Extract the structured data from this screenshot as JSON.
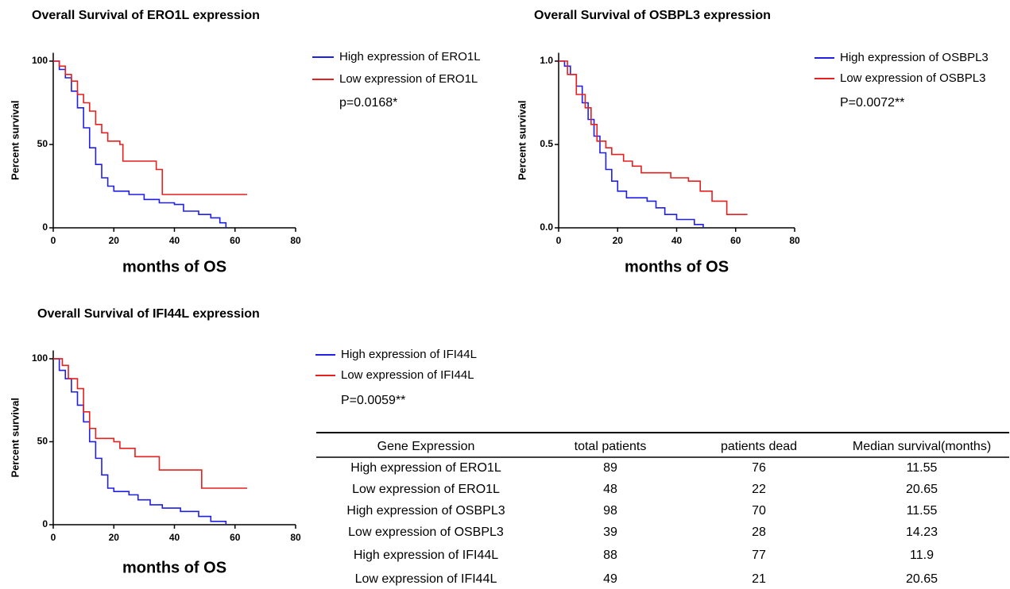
{
  "chart_data": [
    {
      "type": "line",
      "title": "Overall Survival of ERO1L expression",
      "y_label": "Percent survival",
      "x_label": "months of OS",
      "annotation": "p=0.0168*",
      "xlim": [
        0,
        80
      ],
      "xticks": [
        0,
        20,
        40,
        60,
        80
      ],
      "ylim": [
        0,
        105
      ],
      "yticks": [
        0,
        50,
        100
      ],
      "step": true,
      "series": [
        {
          "name": "High expression of ERO1L",
          "color": "#1f1fe6",
          "x": [
            0,
            2,
            4,
            6,
            8,
            10,
            12,
            14,
            16,
            18,
            20,
            25,
            30,
            35,
            40,
            43,
            48,
            52,
            55,
            57
          ],
          "values": [
            100,
            95,
            90,
            82,
            72,
            60,
            48,
            38,
            30,
            25,
            22,
            20,
            17,
            15,
            14,
            10,
            8,
            6,
            3,
            0
          ]
        },
        {
          "name": "Low expression of ERO1L",
          "color": "#e61f1f",
          "x": [
            0,
            2,
            4,
            6,
            8,
            10,
            12,
            14,
            16,
            18,
            22,
            23,
            34,
            36,
            64
          ],
          "values": [
            100,
            97,
            92,
            88,
            80,
            75,
            70,
            62,
            57,
            52,
            50,
            40,
            35,
            20,
            20
          ]
        }
      ]
    },
    {
      "type": "line",
      "title": "Overall Survival of OSBPL3 expression",
      "y_label": "Percent survival",
      "x_label": "months of OS",
      "annotation": "P=0.0072**",
      "xlim": [
        0,
        80
      ],
      "xticks": [
        0,
        20,
        40,
        60,
        80
      ],
      "ylim": [
        0,
        1.05
      ],
      "yticks": [
        {
          "value": 0,
          "label": "0.0"
        },
        0.5,
        {
          "value": 1,
          "label": "1.0"
        }
      ],
      "step": true,
      "series": [
        {
          "name": "High expression of OSBPL3",
          "color": "#1f1fe6",
          "x": [
            0,
            2,
            4,
            6,
            8,
            10,
            12,
            14,
            16,
            18,
            20,
            23,
            30,
            33,
            36,
            40,
            46,
            49
          ],
          "values": [
            1.0,
            0.97,
            0.92,
            0.85,
            0.75,
            0.65,
            0.55,
            0.45,
            0.35,
            0.28,
            0.22,
            0.18,
            0.16,
            0.12,
            0.08,
            0.05,
            0.02,
            0.0
          ]
        },
        {
          "name": "Low expression of OSBPL3",
          "color": "#e61f1f",
          "x": [
            0,
            3,
            6,
            9,
            11,
            13,
            16,
            18,
            22,
            25,
            28,
            38,
            44,
            48,
            52,
            57,
            64
          ],
          "values": [
            1.0,
            0.92,
            0.8,
            0.72,
            0.62,
            0.52,
            0.48,
            0.44,
            0.4,
            0.37,
            0.33,
            0.3,
            0.28,
            0.22,
            0.16,
            0.08,
            0.08
          ]
        }
      ]
    },
    {
      "type": "line",
      "title": "Overall Survival of IFI44L expression",
      "y_label": "Percent survival",
      "x_label": "months of OS",
      "annotation": "P=0.0059**",
      "xlim": [
        0,
        80
      ],
      "xticks": [
        0,
        20,
        40,
        60,
        80
      ],
      "ylim": [
        0,
        105
      ],
      "yticks": [
        0,
        50,
        100
      ],
      "step": true,
      "series": [
        {
          "name": "High expression of IFI44L",
          "color": "#1f1fe6",
          "x": [
            0,
            2,
            4,
            6,
            8,
            10,
            12,
            14,
            16,
            18,
            20,
            25,
            28,
            32,
            36,
            42,
            48,
            52,
            57
          ],
          "values": [
            100,
            93,
            88,
            80,
            72,
            62,
            50,
            40,
            30,
            22,
            20,
            18,
            15,
            12,
            10,
            8,
            5,
            2,
            0
          ]
        },
        {
          "name": "Low expression of IFI44L",
          "color": "#e61f1f",
          "x": [
            0,
            3,
            5,
            8,
            10,
            12,
            14,
            20,
            22,
            27,
            35,
            49,
            64
          ],
          "values": [
            100,
            96,
            88,
            82,
            68,
            58,
            52,
            50,
            46,
            41,
            33,
            22,
            22
          ]
        }
      ]
    }
  ],
  "table": {
    "header": [
      "Gene Expression",
      "total patients",
      "patients dead",
      "Median survival(months)"
    ],
    "rows": [
      [
        "High expression of ERO1L",
        89,
        76,
        11.55
      ],
      [
        "Low expression of ERO1L",
        48,
        22,
        20.65
      ],
      [
        "High expression of OSBPL3",
        98,
        70,
        11.55
      ],
      [
        "Low expression of OSBPL3",
        39,
        28,
        14.23
      ],
      [
        "High expression of IFI44L",
        88,
        77,
        11.9
      ],
      [
        "Low expression of IFI44L",
        49,
        21,
        20.65
      ]
    ]
  }
}
